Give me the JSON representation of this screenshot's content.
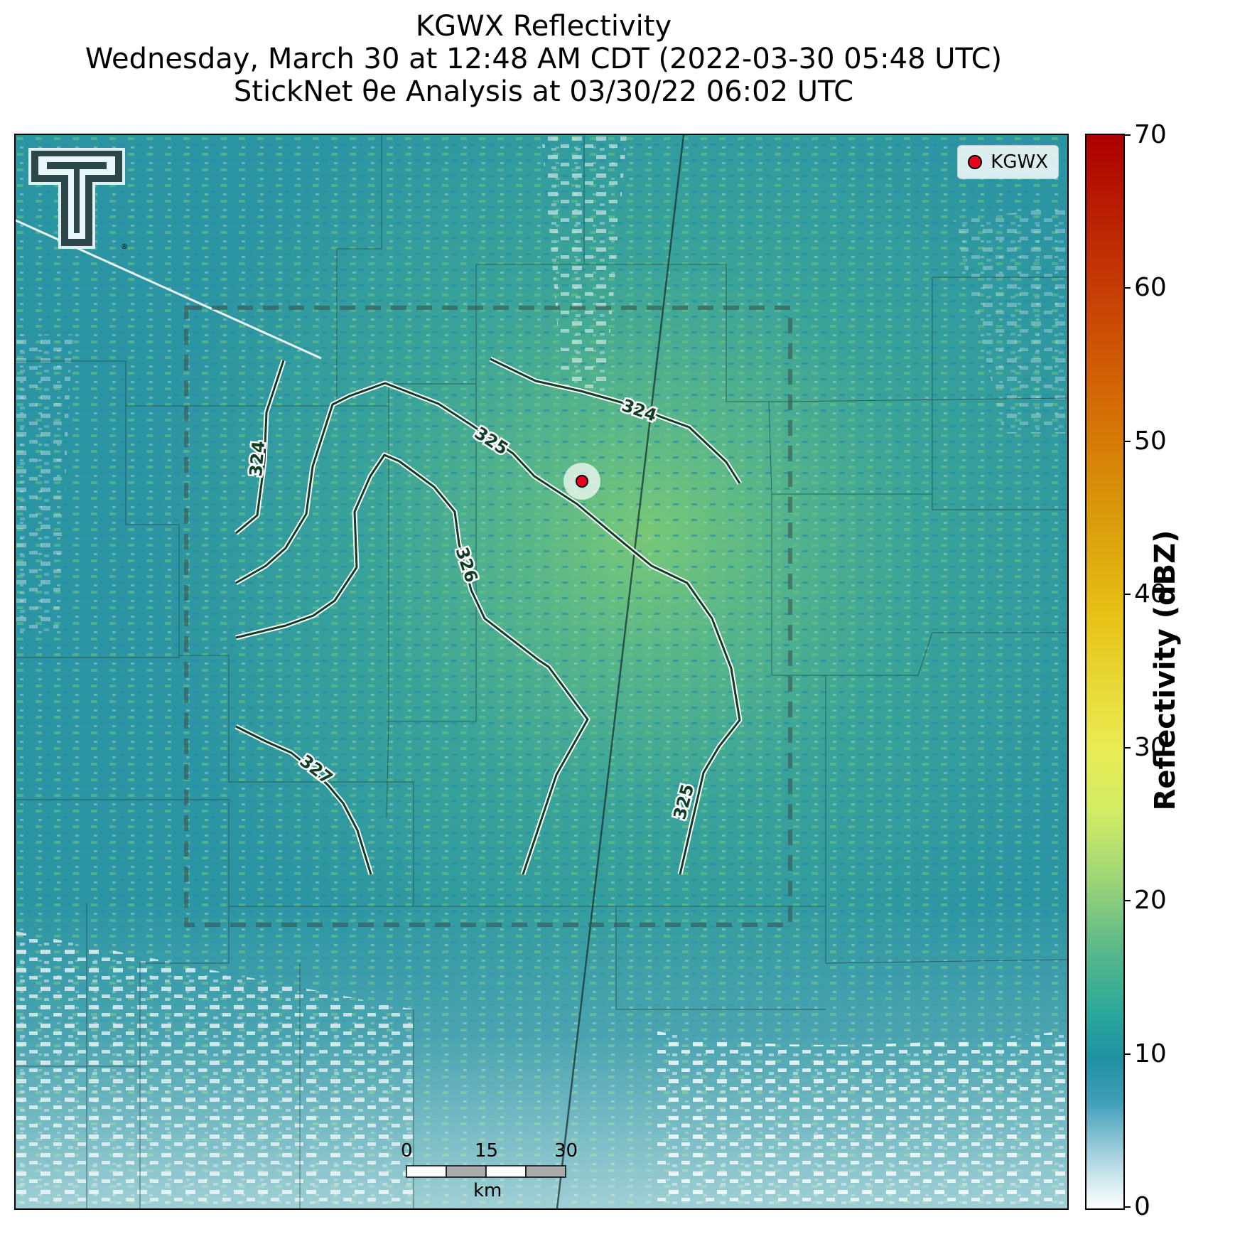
{
  "title": {
    "line1": "KGWX Reflectivity",
    "line2": "Wednesday, March 30 at 12:48 AM CDT (2022-03-30 05:48 UTC)",
    "line3": "StickNet θe Analysis at 03/30/22 06:02 UTC"
  },
  "legend": {
    "marker_label": "KGWX",
    "marker_color": "#e8001c"
  },
  "colorbar": {
    "label": "Reflectivity (dBZ)",
    "ticks": [
      "0",
      "10",
      "20",
      "30",
      "40",
      "50",
      "60",
      "70"
    ],
    "range": [
      0,
      70
    ]
  },
  "contours": {
    "color": "#0f3d24",
    "labels": [
      "324",
      "324",
      "325",
      "325",
      "326",
      "327"
    ]
  },
  "scale_bar": {
    "ticks": [
      "0",
      "15",
      "30"
    ],
    "unit": "km"
  },
  "logo": {
    "icon": "texas-tech-double-t-logo"
  }
}
